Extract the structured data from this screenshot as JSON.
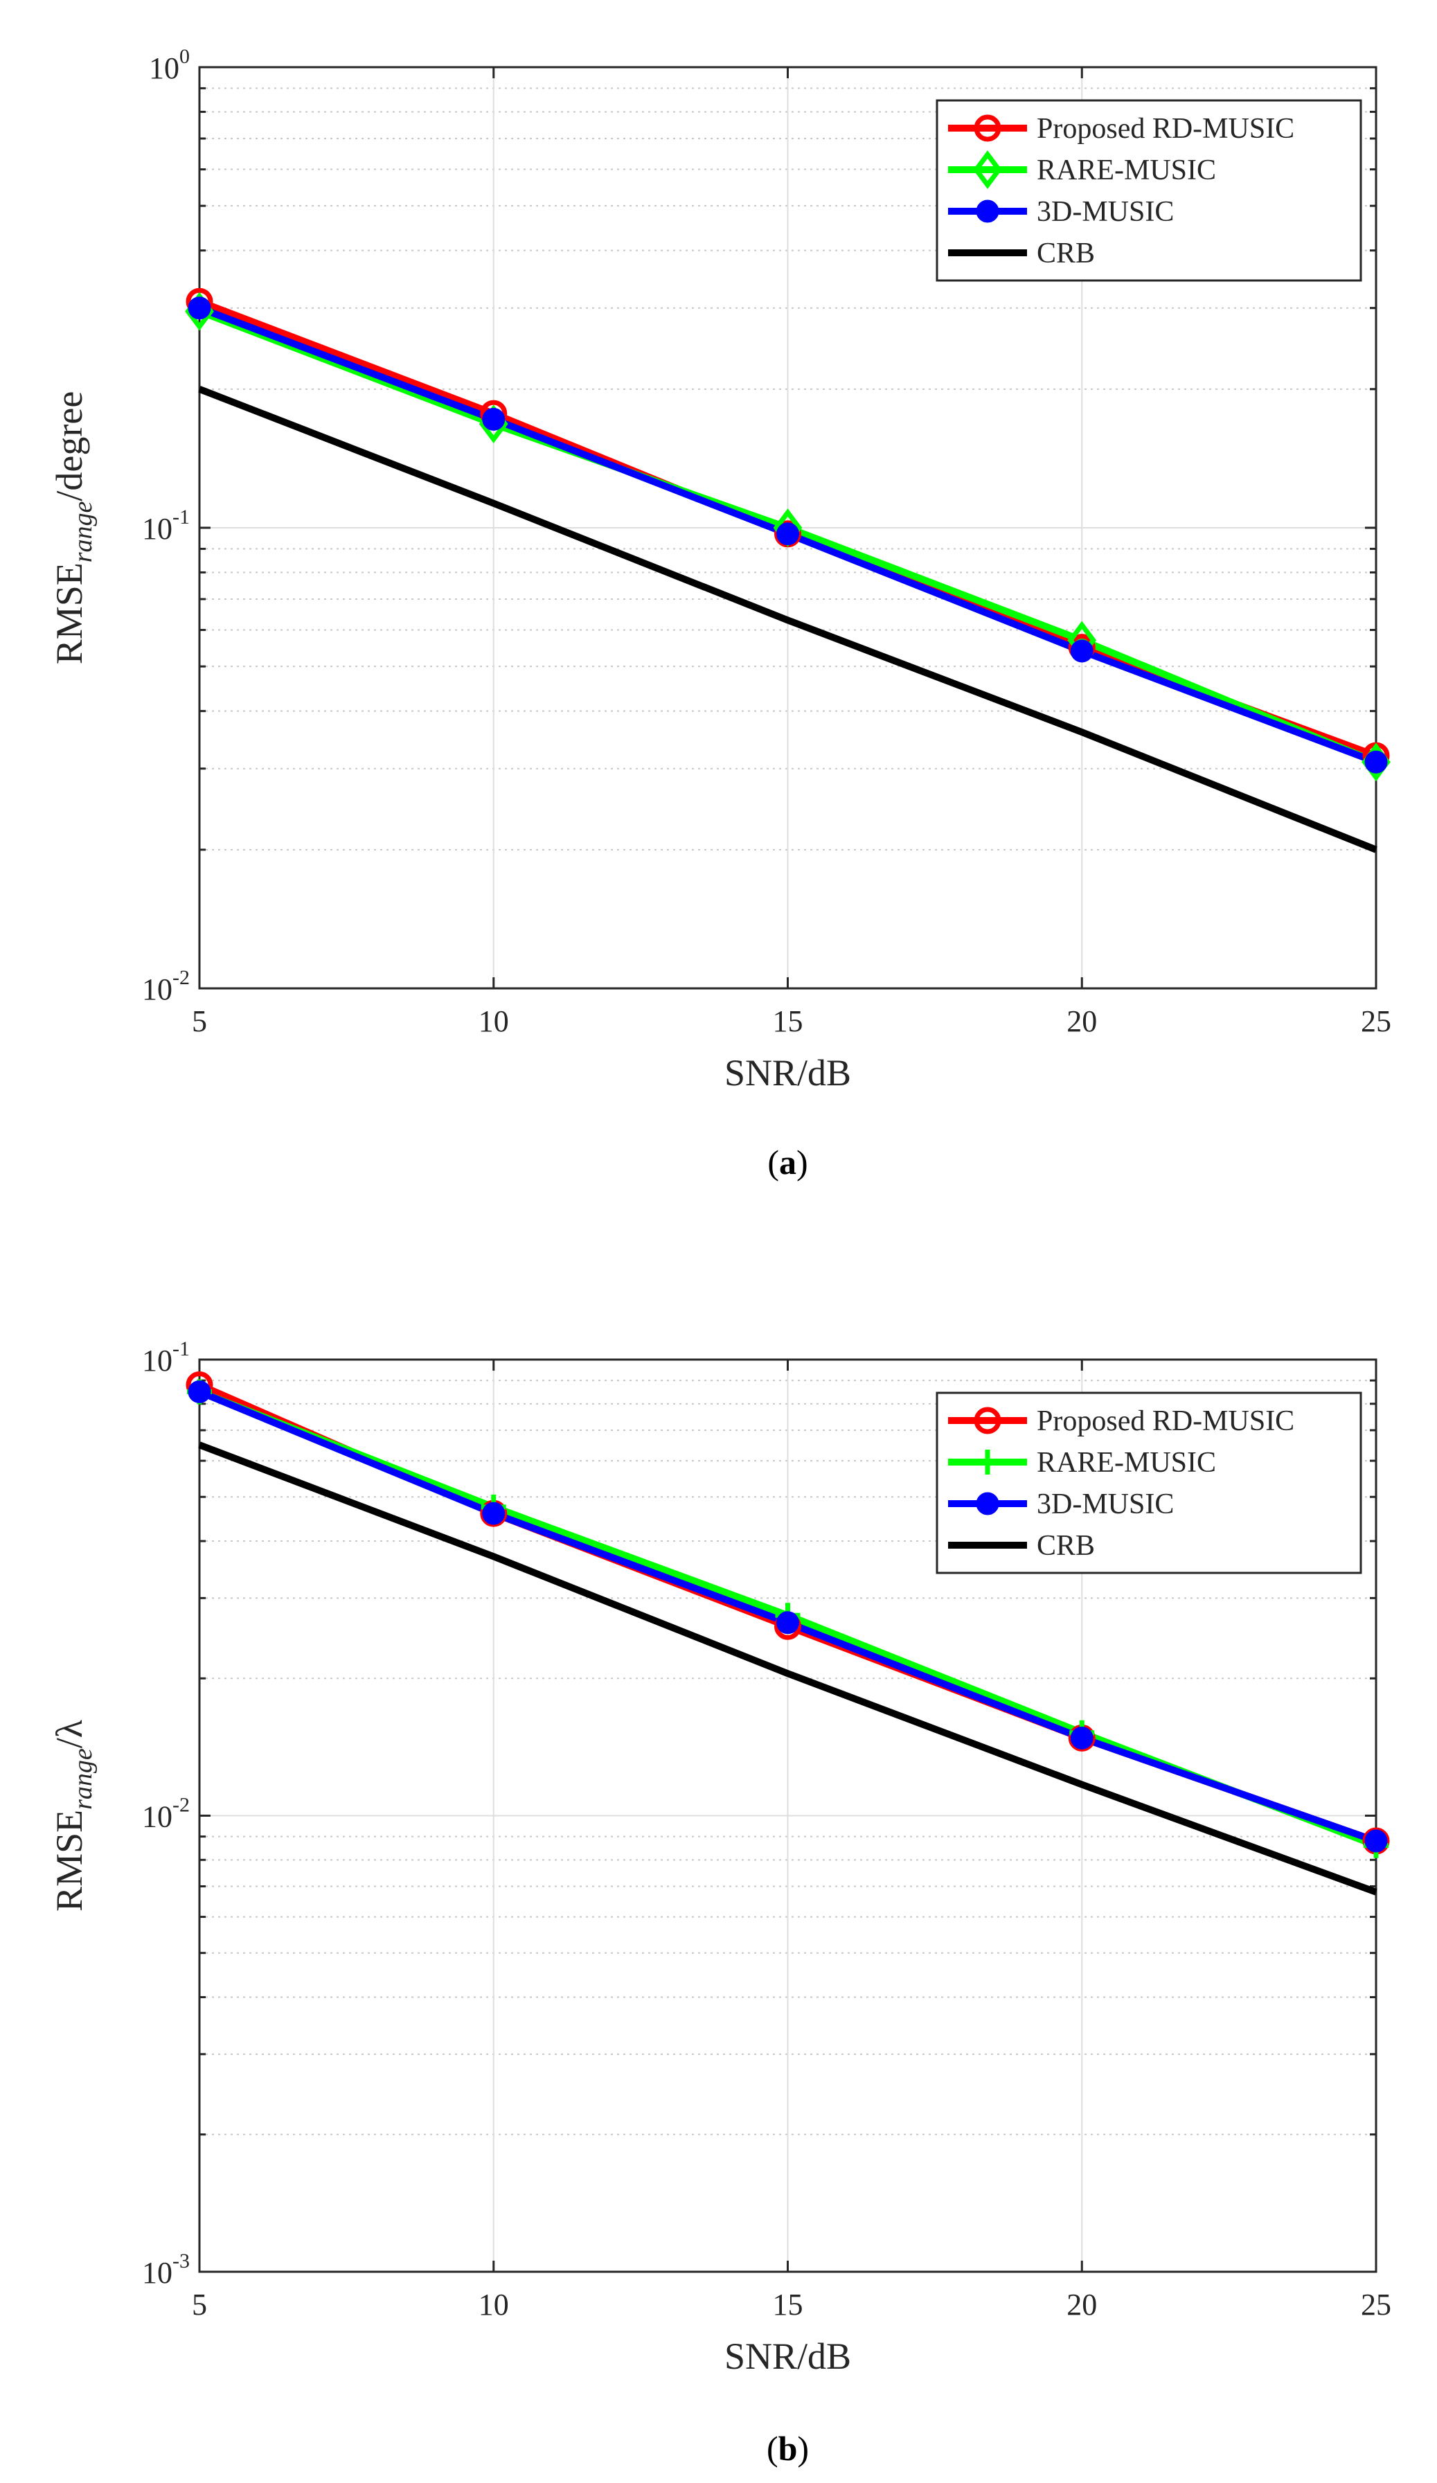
{
  "chart_data": [
    {
      "type": "line",
      "id": "a",
      "caption_letter": "a",
      "xlabel": "SNR/dB",
      "ylabel_main": "RMSE",
      "ylabel_sub": "range",
      "ylabel_tail": "/degree",
      "x": [
        5,
        10,
        15,
        20,
        25
      ],
      "xlim": [
        5,
        25
      ],
      "ylim": [
        0.01,
        1
      ],
      "yscale": "log",
      "grid": true,
      "legend_position": "top-right",
      "y_tick_labels": [
        {
          "base": "10",
          "exp": "0",
          "value": 1
        },
        {
          "base": "10",
          "exp": "-1",
          "value": 0.1
        },
        {
          "base": "10",
          "exp": "-2",
          "value": 0.01
        }
      ],
      "series": [
        {
          "name": "Proposed RD-MUSIC",
          "color": "#ff0000",
          "marker": "circle-open",
          "values": [
            0.31,
            0.177,
            0.097,
            0.055,
            0.032
          ]
        },
        {
          "name": "RARE-MUSIC",
          "color": "#00ff00",
          "marker": "diamond",
          "values": [
            0.295,
            0.168,
            0.1,
            0.057,
            0.031
          ]
        },
        {
          "name": "3D-MUSIC",
          "color": "#0000ff",
          "marker": "circle-filled",
          "values": [
            0.3,
            0.172,
            0.097,
            0.054,
            0.031
          ]
        },
        {
          "name": "CRB",
          "color": "#000000",
          "marker": "none",
          "values": [
            0.2,
            0.113,
            0.063,
            0.036,
            0.02
          ]
        }
      ]
    },
    {
      "type": "line",
      "id": "b",
      "caption_letter": "b",
      "xlabel": "SNR/dB",
      "ylabel_main": "RMSE",
      "ylabel_sub": "range",
      "ylabel_tail": "/λ",
      "x": [
        5,
        10,
        15,
        20,
        25
      ],
      "xlim": [
        5,
        25
      ],
      "ylim": [
        0.001,
        0.1
      ],
      "yscale": "log",
      "grid": true,
      "legend_position": "top-right",
      "y_tick_labels": [
        {
          "base": "10",
          "exp": "-1",
          "value": 0.1
        },
        {
          "base": "10",
          "exp": "-2",
          "value": 0.01
        },
        {
          "base": "10",
          "exp": "-3",
          "value": 0.001
        }
      ],
      "series": [
        {
          "name": "Proposed RD-MUSIC",
          "color": "#ff0000",
          "marker": "circle-open",
          "values": [
            0.088,
            0.046,
            0.026,
            0.0148,
            0.0088
          ]
        },
        {
          "name": "RARE-MUSIC",
          "color": "#00ff00",
          "marker": "plus",
          "values": [
            0.085,
            0.0475,
            0.0275,
            0.0152,
            0.0086
          ]
        },
        {
          "name": "3D-MUSIC",
          "color": "#0000ff",
          "marker": "circle-filled",
          "values": [
            0.085,
            0.046,
            0.0265,
            0.0148,
            0.0088
          ]
        },
        {
          "name": "CRB",
          "color": "#000000",
          "marker": "none",
          "values": [
            0.065,
            0.037,
            0.0205,
            0.0117,
            0.0068
          ]
        }
      ]
    }
  ]
}
